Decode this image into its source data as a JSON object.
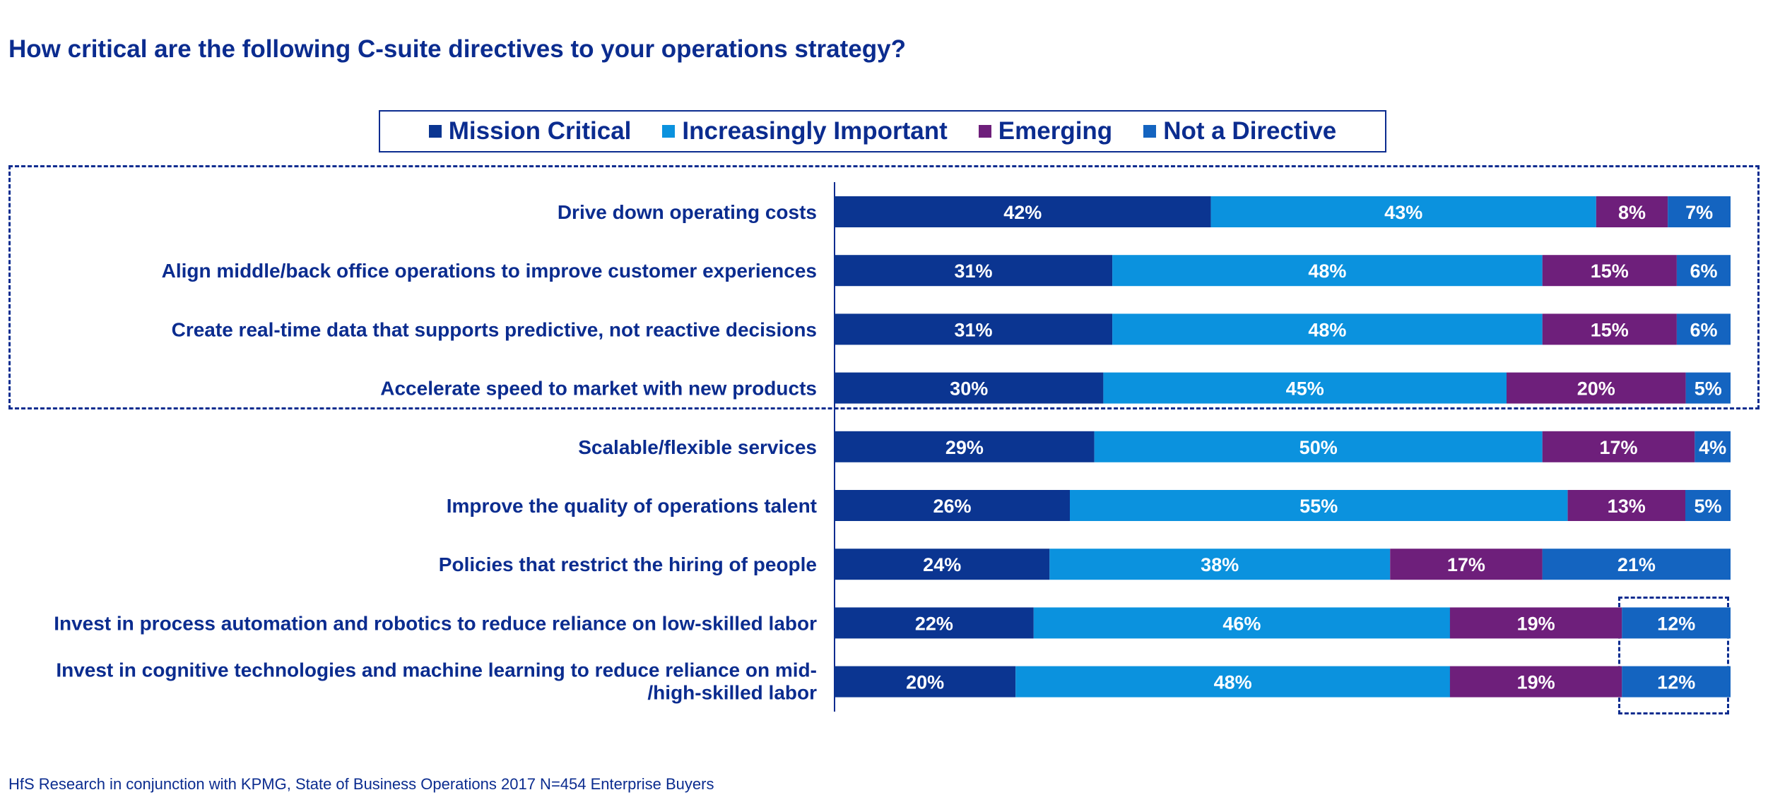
{
  "title": "How critical are the following C-suite directives to your operations strategy?",
  "footer": "HfS Research in conjunction with KPMG, State of Business Operations 2017 N=454 Enterprise Buyers",
  "legend": [
    {
      "label": "Mission Critical",
      "color": "#0b3591"
    },
    {
      "label": "Increasingly Important",
      "color": "#0b92de"
    },
    {
      "label": "Emerging",
      "color": "#6e1f7b"
    },
    {
      "label": "Not a Directive",
      "color": "#1464c0"
    }
  ],
  "chart_data": {
    "type": "bar",
    "orientation": "horizontal",
    "stacked": true,
    "categories": [
      "Drive down operating costs",
      "Align middle/back office operations to improve customer experiences",
      "Create real-time data that supports predictive, not reactive decisions",
      "Accelerate speed to market with new products",
      "Scalable/flexible services",
      "Improve the quality of operations talent",
      "Policies that restrict the hiring of people",
      "Invest in process automation and robotics to reduce reliance on low-skilled labor",
      "Invest in cognitive technologies and machine learning to reduce reliance on mid- /high-skilled labor"
    ],
    "series": [
      {
        "name": "Mission Critical",
        "color": "#0b3591",
        "values": [
          42,
          31,
          31,
          30,
          29,
          26,
          24,
          22,
          20
        ]
      },
      {
        "name": "Increasingly Important",
        "color": "#0b92de",
        "values": [
          43,
          48,
          48,
          45,
          50,
          55,
          38,
          46,
          48
        ]
      },
      {
        "name": "Emerging",
        "color": "#6e1f7b",
        "values": [
          8,
          15,
          15,
          20,
          17,
          13,
          17,
          19,
          19
        ]
      },
      {
        "name": "Not a Directive",
        "color": "#1464c0",
        "values": [
          7,
          6,
          6,
          5,
          4,
          5,
          21,
          12,
          12
        ]
      }
    ],
    "value_suffix": "%",
    "xlim": [
      0,
      100
    ],
    "legend_position": "top",
    "grid": false
  }
}
